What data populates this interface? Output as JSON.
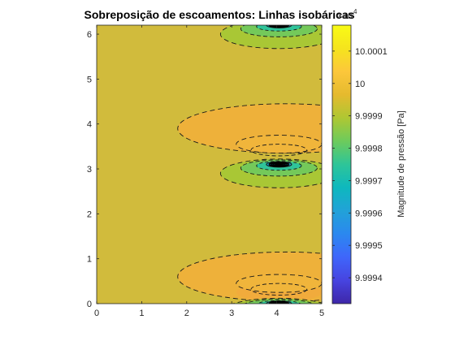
{
  "chart_data": {
    "type": "heatmap",
    "subtype": "filled-contour",
    "title": "Sobreposição de escoamentos: Linhas isobáricas",
    "xlabel": "",
    "ylabel": "",
    "xlim": [
      0,
      5
    ],
    "ylim": [
      0,
      6.2
    ],
    "xticks": [
      "0",
      "1",
      "2",
      "3",
      "4",
      "5"
    ],
    "yticks": [
      "0",
      "1",
      "2",
      "3",
      "4",
      "5",
      "6"
    ],
    "grid": false,
    "background_value_color": "#d1bb3c",
    "colorbar": {
      "label": "Magnitude de pressão [Pa]",
      "multiplier": "×10",
      "exponent": "4",
      "range": [
        9.99932,
        10.00018
      ],
      "ticks": [
        "9.9994",
        "9.9995",
        "9.9996",
        "9.9997",
        "9.9998",
        "9.9999",
        "10",
        "10.0001"
      ],
      "colormap": [
        "#3e26a8",
        "#4744e0",
        "#3f66fb",
        "#2b88ef",
        "#21a2d8",
        "#0eb8be",
        "#2ec598",
        "#6dcb5c",
        "#aec733",
        "#e5ba2e",
        "#fcc73b",
        "#f5e41d",
        "#f9fb15"
      ]
    },
    "features": [
      {
        "kind": "low",
        "x": 4.05,
        "y": 6.2,
        "level": "low"
      },
      {
        "kind": "low",
        "x": 4.05,
        "y": 3.1,
        "level": "low"
      },
      {
        "kind": "low",
        "x": 4.05,
        "y": 0.0,
        "level": "low"
      },
      {
        "kind": "high-band",
        "x": 3.6,
        "y": 3.9,
        "level": "high"
      },
      {
        "kind": "high-band",
        "x": 3.6,
        "y": 0.6,
        "level": "high"
      }
    ]
  }
}
